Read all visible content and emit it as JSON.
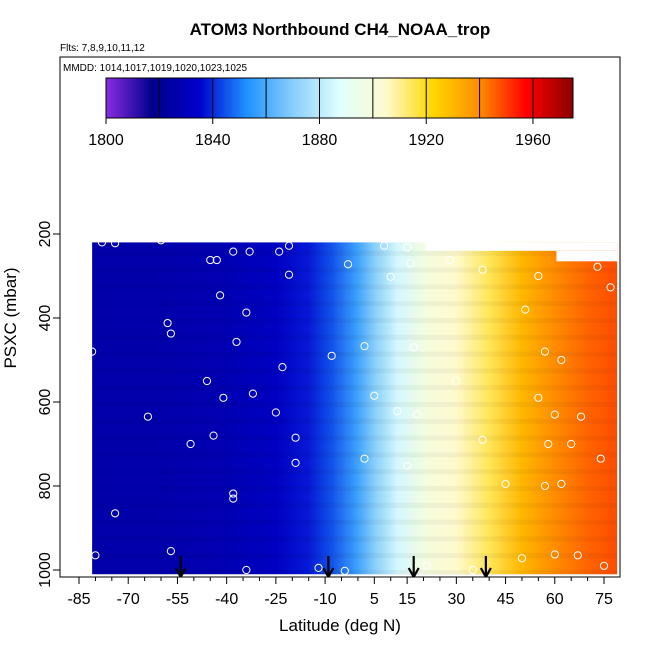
{
  "chart_data": {
    "type": "heatmap",
    "title": "ATOM3 Northbound CH4_NOAA_trop",
    "flights_label": "Flts: 7,8,9,10,11,12",
    "dates_label": "MMDD: 1014,1017,1019,1020,1023,1025",
    "xlabel": "Latitude (deg N)",
    "ylabel": "PSXC (mbar)",
    "xlim": [
      -85,
      85
    ],
    "ylim": [
      1020,
      70
    ],
    "xticks": [
      -85,
      -70,
      -55,
      -40,
      -25,
      -10,
      5,
      15,
      30,
      45,
      60,
      75
    ],
    "yticks": [
      200,
      400,
      600,
      800,
      1000
    ],
    "colorbar": {
      "min": 1800,
      "max": 1975,
      "ticks": [
        1800,
        1840,
        1880,
        1920,
        1960
      ],
      "colors": [
        "#8a2be2",
        "#00008b",
        "#0000cd",
        "#1e90ff",
        "#87cefa",
        "#e0ffff",
        "#fffacd",
        "#ffd700",
        "#ff8c00",
        "#ff0000",
        "#8b0000"
      ]
    },
    "field_profile": {
      "latitudes": [
        -80,
        -60,
        -40,
        -25,
        -15,
        -8,
        0,
        5,
        12,
        20,
        30,
        40,
        50,
        60,
        70,
        80
      ],
      "ch4": [
        1826,
        1826,
        1828,
        1832,
        1838,
        1845,
        1858,
        1870,
        1885,
        1898,
        1905,
        1915,
        1930,
        1940,
        1945,
        1948
      ]
    },
    "data_extent": {
      "top_boundary_pressure": [
        220,
        220,
        220,
        220,
        260,
        260,
        265,
        260
      ],
      "top_boundary_latitude": [
        -80,
        -38,
        -37,
        20,
        21,
        60,
        61,
        78
      ]
    },
    "flight_markers_latitude": [
      -54,
      -9,
      17,
      39
    ],
    "sample_points": [
      {
        "lat": -78,
        "p": 220
      },
      {
        "lat": -74,
        "p": 222
      },
      {
        "lat": -60,
        "p": 215
      },
      {
        "lat": -45,
        "p": 262
      },
      {
        "lat": -43,
        "p": 262
      },
      {
        "lat": -38,
        "p": 242
      },
      {
        "lat": -33,
        "p": 242
      },
      {
        "lat": -24,
        "p": 242
      },
      {
        "lat": -21,
        "p": 228
      },
      {
        "lat": -7,
        "p": 205
      },
      {
        "lat": 8,
        "p": 228
      },
      {
        "lat": 15,
        "p": 232
      },
      {
        "lat": 40,
        "p": 213
      },
      {
        "lat": -83,
        "p": 308
      },
      {
        "lat": -42,
        "p": 346
      },
      {
        "lat": -34,
        "p": 387
      },
      {
        "lat": -21,
        "p": 297
      },
      {
        "lat": -3,
        "p": 272
      },
      {
        "lat": 10,
        "p": 302
      },
      {
        "lat": 16,
        "p": 270
      },
      {
        "lat": 28,
        "p": 262
      },
      {
        "lat": 38,
        "p": 285
      },
      {
        "lat": 55,
        "p": 300
      },
      {
        "lat": 73,
        "p": 278
      },
      {
        "lat": -81,
        "p": 480
      },
      {
        "lat": -58,
        "p": 412
      },
      {
        "lat": -57,
        "p": 437
      },
      {
        "lat": -37,
        "p": 457
      },
      {
        "lat": -32,
        "p": 580
      },
      {
        "lat": -23,
        "p": 517
      },
      {
        "lat": -8,
        "p": 490
      },
      {
        "lat": 2,
        "p": 467
      },
      {
        "lat": 17,
        "p": 470
      },
      {
        "lat": 51,
        "p": 380
      },
      {
        "lat": 57,
        "p": 480
      },
      {
        "lat": 62,
        "p": 500
      },
      {
        "lat": 77,
        "p": 327
      },
      {
        "lat": -64,
        "p": 635
      },
      {
        "lat": -46,
        "p": 550
      },
      {
        "lat": -41,
        "p": 590
      },
      {
        "lat": -25,
        "p": 625
      },
      {
        "lat": 5,
        "p": 585
      },
      {
        "lat": 12,
        "p": 622
      },
      {
        "lat": 18,
        "p": 630
      },
      {
        "lat": 30,
        "p": 550
      },
      {
        "lat": 55,
        "p": 590
      },
      {
        "lat": 60,
        "p": 630
      },
      {
        "lat": 68,
        "p": 635
      },
      {
        "lat": -51,
        "p": 700
      },
      {
        "lat": -44,
        "p": 680
      },
      {
        "lat": -19,
        "p": 685
      },
      {
        "lat": -19,
        "p": 745
      },
      {
        "lat": 2,
        "p": 735
      },
      {
        "lat": 15,
        "p": 752
      },
      {
        "lat": 38,
        "p": 690
      },
      {
        "lat": 58,
        "p": 700
      },
      {
        "lat": 65,
        "p": 700
      },
      {
        "lat": 74,
        "p": 735
      },
      {
        "lat": -74,
        "p": 865
      },
      {
        "lat": -38,
        "p": 818
      },
      {
        "lat": -38,
        "p": 830
      },
      {
        "lat": 45,
        "p": 795
      },
      {
        "lat": 57,
        "p": 800
      },
      {
        "lat": 62,
        "p": 795
      },
      {
        "lat": -80,
        "p": 965
      },
      {
        "lat": -57,
        "p": 955
      },
      {
        "lat": -34,
        "p": 1000
      },
      {
        "lat": -12,
        "p": 995
      },
      {
        "lat": -4,
        "p": 1002
      },
      {
        "lat": 21,
        "p": 990
      },
      {
        "lat": 35,
        "p": 1000
      },
      {
        "lat": 50,
        "p": 972
      },
      {
        "lat": 60,
        "p": 963
      },
      {
        "lat": 67,
        "p": 965
      },
      {
        "lat": 75,
        "p": 990
      }
    ]
  }
}
